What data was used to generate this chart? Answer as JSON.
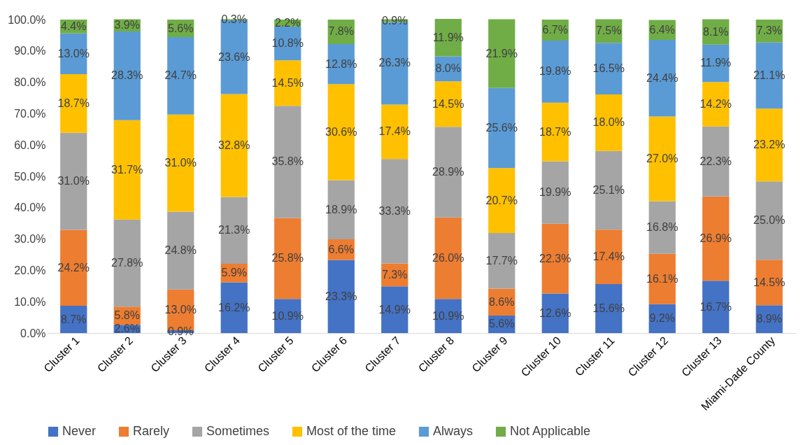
{
  "chart_data": {
    "type": "bar",
    "stacked": true,
    "legend": "bottom",
    "grid": false,
    "categories": [
      "Cluster 1",
      "Cluster 2",
      "Cluster 3",
      "Cluster 4",
      "Cluster 5",
      "Cluster 6",
      "Cluster 7",
      "Cluster 8",
      "Cluster 9",
      "Cluster 10",
      "Cluster 11",
      "Cluster 12",
      "Cluster 13",
      "Miami-Dade County"
    ],
    "ylim": [
      0,
      100
    ],
    "yticks": [
      {
        "value": 0,
        "label": "0.0%"
      },
      {
        "value": 10,
        "label": "10.0%"
      },
      {
        "value": 20,
        "label": "20.0%"
      },
      {
        "value": 30,
        "label": "30.0%"
      },
      {
        "value": 40,
        "label": "40.0%"
      },
      {
        "value": 50,
        "label": "50.0%"
      },
      {
        "value": 60,
        "label": "60.0%"
      },
      {
        "value": 70,
        "label": "70.0%"
      },
      {
        "value": 80,
        "label": "80.0%"
      },
      {
        "value": 90,
        "label": "90.0%"
      },
      {
        "value": 100,
        "label": "100.0%"
      }
    ],
    "series": [
      {
        "name": "Never",
        "color": "#4472c4",
        "values": [
          8.7,
          2.6,
          0.9,
          16.2,
          10.9,
          23.3,
          14.9,
          10.9,
          5.6,
          12.6,
          15.6,
          9.2,
          16.7,
          8.9
        ],
        "value_labels": [
          "8.7%",
          "2.6%",
          "0.9%",
          "16.2%",
          "10.9%",
          "23.3%",
          "14.9%",
          "10.9%",
          "5.6%",
          "12.6%",
          "15.6%",
          "9.2%",
          "16.7%",
          "8.9%"
        ]
      },
      {
        "name": "Rarely",
        "color": "#ed7d31",
        "values": [
          24.2,
          5.8,
          13.0,
          5.9,
          25.8,
          6.6,
          7.3,
          26.0,
          8.6,
          22.3,
          17.4,
          16.1,
          26.9,
          14.5
        ],
        "value_labels": [
          "24.2%",
          "5.8%",
          "13.0%",
          "5.9%",
          "25.8%",
          "6.6%",
          "7.3%",
          "26.0%",
          "8.6%",
          "22.3%",
          "17.4%",
          "16.1%",
          "26.9%",
          "14.5%"
        ]
      },
      {
        "name": "Sometimes",
        "color": "#a5a5a5",
        "values": [
          31.0,
          27.8,
          24.8,
          21.3,
          35.8,
          18.9,
          33.3,
          28.9,
          17.7,
          19.9,
          25.1,
          16.8,
          22.3,
          25.0
        ],
        "value_labels": [
          "31.0%",
          "27.8%",
          "24.8%",
          "21.3%",
          "35.8%",
          "18.9%",
          "33.3%",
          "28.9%",
          "17.7%",
          "19.9%",
          "25.1%",
          "16.8%",
          "22.3%",
          "25.0%"
        ]
      },
      {
        "name": "Most of the time",
        "color": "#ffc000",
        "values": [
          18.7,
          31.7,
          31.0,
          32.8,
          14.5,
          30.6,
          17.4,
          14.5,
          20.7,
          18.7,
          18.0,
          27.0,
          14.2,
          23.2
        ],
        "value_labels": [
          "18.7%",
          "31.7%",
          "31.0%",
          "32.8%",
          "14.5%",
          "30.6%",
          "17.4%",
          "14.5%",
          "20.7%",
          "18.7%",
          "18.0%",
          "27.0%",
          "14.2%",
          "23.2%"
        ]
      },
      {
        "name": "Always",
        "color": "#5b9bd5",
        "values": [
          13.0,
          28.3,
          24.7,
          23.6,
          10.8,
          12.8,
          26.3,
          8.0,
          25.6,
          19.8,
          16.5,
          24.4,
          11.9,
          21.1
        ],
        "value_labels": [
          "13.0%",
          "28.3%",
          "24.7%",
          "23.6%",
          "10.8%",
          "12.8%",
          "26.3%",
          "8.0%",
          "25.6%",
          "19.8%",
          "16.5%",
          "24.4%",
          "11.9%",
          "21.1%"
        ]
      },
      {
        "name": "Not Applicable",
        "color": "#70ad47",
        "values": [
          4.4,
          3.9,
          5.6,
          0.3,
          2.2,
          7.8,
          0.9,
          11.9,
          21.9,
          6.7,
          7.5,
          6.4,
          8.1,
          7.3
        ],
        "value_labels": [
          "4.4%",
          "3.9%",
          "5.6%",
          "0.3%",
          "2.2%",
          "7.8%",
          "0.9%",
          "11.9%",
          "21.9%",
          "6.7%",
          "7.5%",
          "6.4%",
          "8.1%",
          "7.3%"
        ]
      }
    ]
  }
}
